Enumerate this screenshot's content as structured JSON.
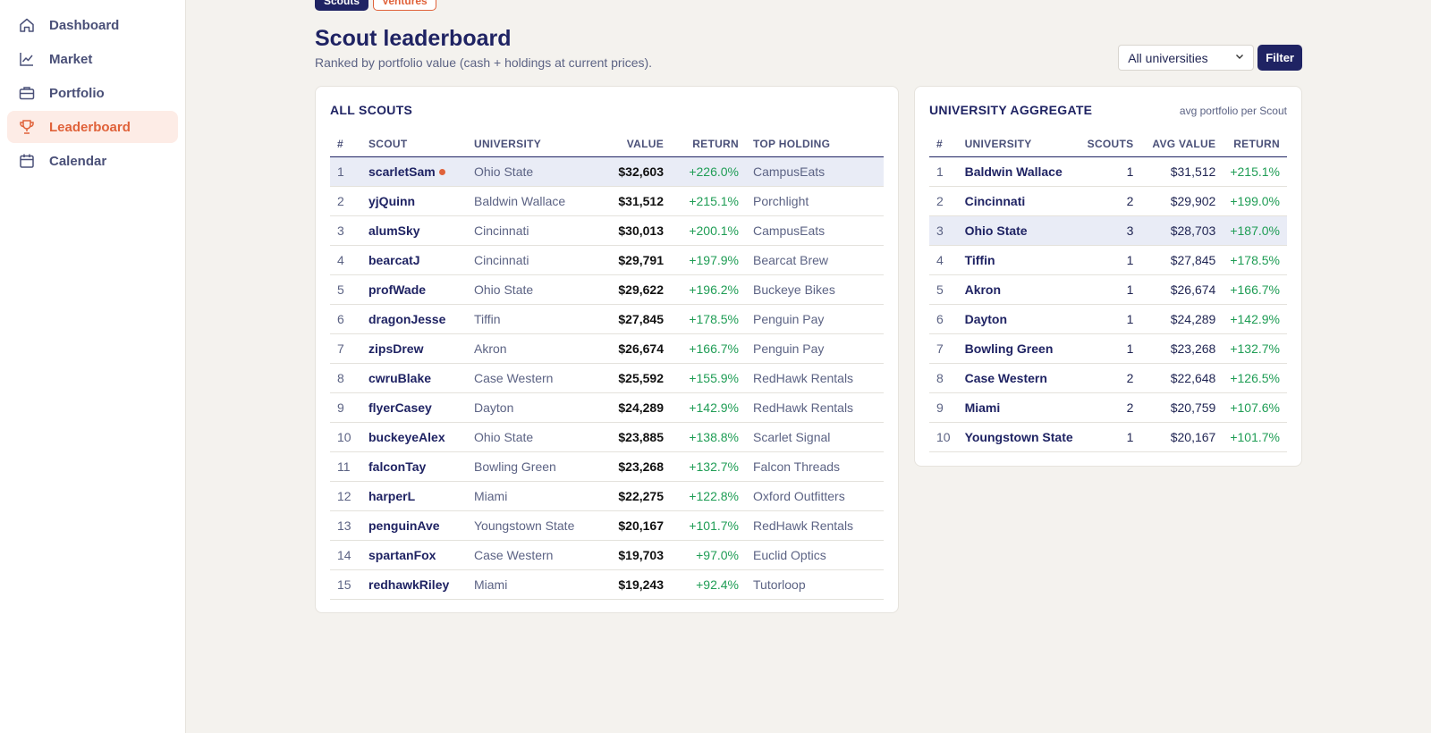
{
  "nav": [
    {
      "label": "Dashboard",
      "icon": "home-icon",
      "active": false
    },
    {
      "label": "Market",
      "icon": "chart-line-icon",
      "active": false
    },
    {
      "label": "Portfolio",
      "icon": "briefcase-icon",
      "active": false
    },
    {
      "label": "Leaderboard",
      "icon": "trophy-icon",
      "active": true
    },
    {
      "label": "Calendar",
      "icon": "calendar-icon",
      "active": false
    }
  ],
  "tabs": {
    "scouts": "Scouts",
    "ventures": "Ventures"
  },
  "header": {
    "title": "Scout leaderboard",
    "subtitle": "Ranked by portfolio value (cash + holdings at current prices)."
  },
  "filter": {
    "selected": "All universities",
    "button": "Filter"
  },
  "scouts_table": {
    "title": "ALL SCOUTS",
    "columns": [
      "#",
      "SCOUT",
      "UNIVERSITY",
      "VALUE",
      "RETURN",
      "TOP HOLDING"
    ],
    "rows": [
      {
        "rank": "1",
        "scout": "scarletSam",
        "university": "Ohio State",
        "value": "$32,603",
        "ret": "+226.0%",
        "holding": "CampusEats",
        "me": true
      },
      {
        "rank": "2",
        "scout": "yjQuinn",
        "university": "Baldwin Wallace",
        "value": "$31,512",
        "ret": "+215.1%",
        "holding": "Porchlight"
      },
      {
        "rank": "3",
        "scout": "alumSky",
        "university": "Cincinnati",
        "value": "$30,013",
        "ret": "+200.1%",
        "holding": "CampusEats"
      },
      {
        "rank": "4",
        "scout": "bearcatJ",
        "university": "Cincinnati",
        "value": "$29,791",
        "ret": "+197.9%",
        "holding": "Bearcat Brew"
      },
      {
        "rank": "5",
        "scout": "profWade",
        "university": "Ohio State",
        "value": "$29,622",
        "ret": "+196.2%",
        "holding": "Buckeye Bikes"
      },
      {
        "rank": "6",
        "scout": "dragonJesse",
        "university": "Tiffin",
        "value": "$27,845",
        "ret": "+178.5%",
        "holding": "Penguin Pay"
      },
      {
        "rank": "7",
        "scout": "zipsDrew",
        "university": "Akron",
        "value": "$26,674",
        "ret": "+166.7%",
        "holding": "Penguin Pay"
      },
      {
        "rank": "8",
        "scout": "cwruBlake",
        "university": "Case Western",
        "value": "$25,592",
        "ret": "+155.9%",
        "holding": "RedHawk Rentals"
      },
      {
        "rank": "9",
        "scout": "flyerCasey",
        "university": "Dayton",
        "value": "$24,289",
        "ret": "+142.9%",
        "holding": "RedHawk Rentals"
      },
      {
        "rank": "10",
        "scout": "buckeyeAlex",
        "university": "Ohio State",
        "value": "$23,885",
        "ret": "+138.8%",
        "holding": "Scarlet Signal"
      },
      {
        "rank": "11",
        "scout": "falconTay",
        "university": "Bowling Green",
        "value": "$23,268",
        "ret": "+132.7%",
        "holding": "Falcon Threads"
      },
      {
        "rank": "12",
        "scout": "harperL",
        "university": "Miami",
        "value": "$22,275",
        "ret": "+122.8%",
        "holding": "Oxford Outfitters"
      },
      {
        "rank": "13",
        "scout": "penguinAve",
        "university": "Youngstown State",
        "value": "$20,167",
        "ret": "+101.7%",
        "holding": "RedHawk Rentals"
      },
      {
        "rank": "14",
        "scout": "spartanFox",
        "university": "Case Western",
        "value": "$19,703",
        "ret": "+97.0%",
        "holding": "Euclid Optics"
      },
      {
        "rank": "15",
        "scout": "redhawkRiley",
        "university": "Miami",
        "value": "$19,243",
        "ret": "+92.4%",
        "holding": "Tutorloop"
      }
    ]
  },
  "uni_table": {
    "title": "UNIVERSITY AGGREGATE",
    "note": "avg portfolio per Scout",
    "columns": [
      "#",
      "UNIVERSITY",
      "SCOUTS",
      "AVG VALUE",
      "RETURN"
    ],
    "rows": [
      {
        "rank": "1",
        "university": "Baldwin Wallace",
        "scouts": "1",
        "avg": "$31,512",
        "ret": "+215.1%"
      },
      {
        "rank": "2",
        "university": "Cincinnati",
        "scouts": "2",
        "avg": "$29,902",
        "ret": "+199.0%"
      },
      {
        "rank": "3",
        "university": "Ohio State",
        "scouts": "3",
        "avg": "$28,703",
        "ret": "+187.0%",
        "me": true
      },
      {
        "rank": "4",
        "university": "Tiffin",
        "scouts": "1",
        "avg": "$27,845",
        "ret": "+178.5%"
      },
      {
        "rank": "5",
        "university": "Akron",
        "scouts": "1",
        "avg": "$26,674",
        "ret": "+166.7%"
      },
      {
        "rank": "6",
        "university": "Dayton",
        "scouts": "1",
        "avg": "$24,289",
        "ret": "+142.9%"
      },
      {
        "rank": "7",
        "university": "Bowling Green",
        "scouts": "1",
        "avg": "$23,268",
        "ret": "+132.7%"
      },
      {
        "rank": "8",
        "university": "Case Western",
        "scouts": "2",
        "avg": "$22,648",
        "ret": "+126.5%"
      },
      {
        "rank": "9",
        "university": "Miami",
        "scouts": "2",
        "avg": "$20,759",
        "ret": "+107.6%"
      },
      {
        "rank": "10",
        "university": "Youngstown State",
        "scouts": "1",
        "avg": "$20,167",
        "ret": "+101.7%"
      }
    ]
  },
  "colors": {
    "accent": "#e0623a",
    "navy": "#1f2363",
    "positive": "#1f9d55"
  }
}
